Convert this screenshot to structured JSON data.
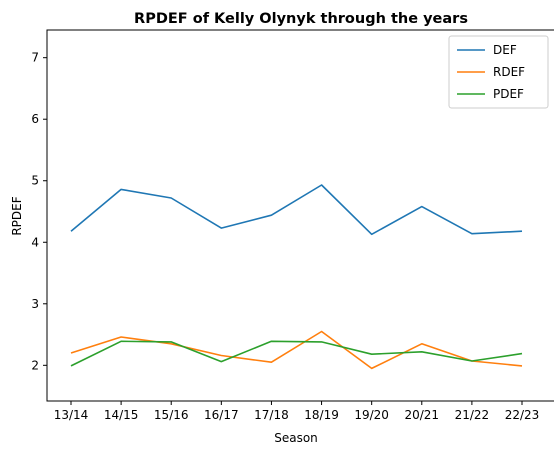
{
  "chart_data": {
    "type": "line",
    "title": "RPDEF of Kelly Olynyk through the years",
    "xlabel": "Season",
    "ylabel": "RPDEF",
    "categories": [
      "13/14",
      "14/15",
      "15/16",
      "16/17",
      "17/18",
      "18/19",
      "19/20",
      "20/21",
      "21/22",
      "22/23"
    ],
    "ylim": [
      1.42,
      7.45
    ],
    "yticks": [
      2,
      3,
      4,
      5,
      6,
      7
    ],
    "grid": false,
    "legend": "top-right",
    "series": [
      {
        "name": "DEF",
        "color": "#1f77b4",
        "values": [
          4.18,
          4.86,
          4.72,
          4.23,
          4.44,
          4.93,
          4.13,
          4.58,
          4.14,
          4.18
        ]
      },
      {
        "name": "RDEF",
        "color": "#ff7f0e",
        "values": [
          2.2,
          2.46,
          2.35,
          2.16,
          2.05,
          2.55,
          1.95,
          2.35,
          2.07,
          1.99
        ]
      },
      {
        "name": "PDEF",
        "color": "#2ca02c",
        "values": [
          1.99,
          2.39,
          2.38,
          2.06,
          2.39,
          2.38,
          2.18,
          2.22,
          2.07,
          2.19
        ]
      }
    ]
  }
}
